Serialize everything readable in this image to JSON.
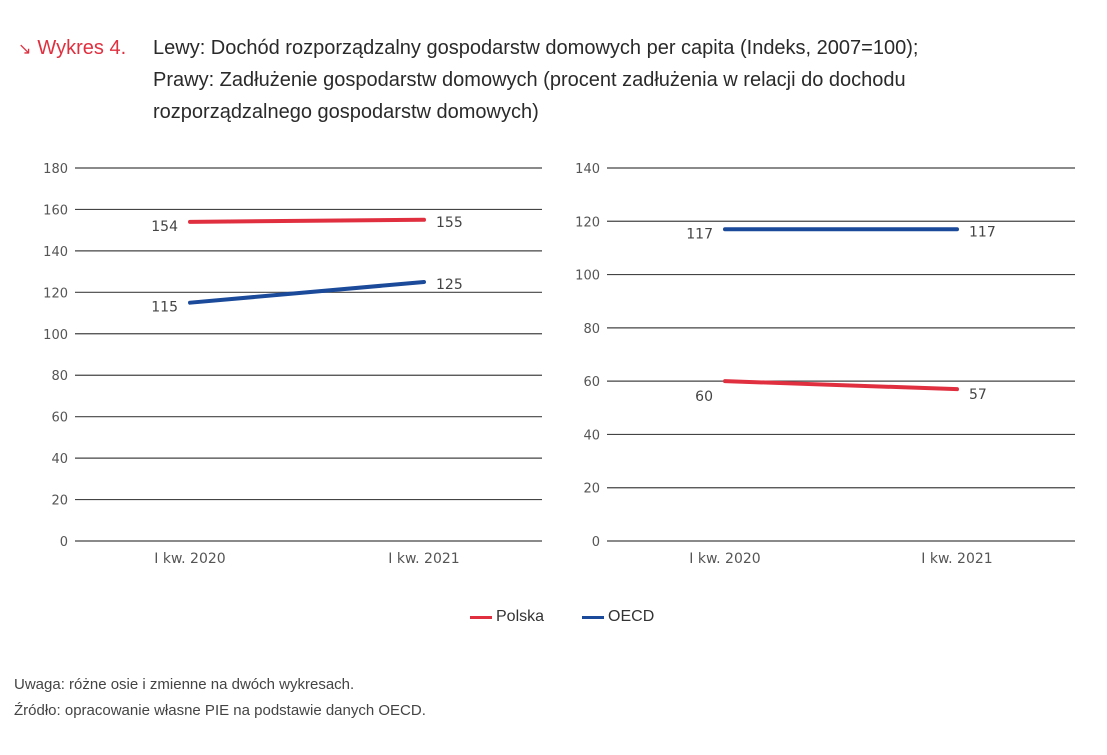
{
  "figure": {
    "label": "Wykres 4.",
    "label_icon": "arrow-down-right-icon",
    "title_lines": [
      "Lewy: Dochód rozporządzalny gospodarstw domowych per capita (Indeks, 2007=100);",
      "Prawy: Zadłużenie gospodarstw domowych (procent zadłużenia w relacji do dochodu",
      "rozporządzalnego gospodarstw domowych)"
    ],
    "accent_color": "#e03040"
  },
  "legend": [
    {
      "name": "Polska",
      "color": "#e03040"
    },
    {
      "name": "OECD",
      "color": "#1b4a9a"
    }
  ],
  "notes": {
    "note": "Uwaga: różne osie i zmienne na dwóch wykresach.",
    "source": "Źródło: opracowanie własne PIE na podstawie danych OECD."
  },
  "chart_data": [
    {
      "type": "line",
      "title": "Dochód rozporządzalny gospodarstw domowych per capita (Indeks, 2007=100)",
      "xlabel": "",
      "ylabel": "",
      "categories": [
        "I kw. 2020",
        "I kw. 2021"
      ],
      "ylim": [
        0,
        180
      ],
      "yticks": [
        0,
        20,
        40,
        60,
        80,
        100,
        120,
        140,
        160,
        180
      ],
      "grid": true,
      "series": [
        {
          "name": "Polska",
          "color": "#e03040",
          "values": [
            154,
            155
          ]
        },
        {
          "name": "OECD",
          "color": "#1b4a9a",
          "values": [
            115,
            125
          ]
        }
      ]
    },
    {
      "type": "line",
      "title": "Zadłużenie gospodarstw domowych (procent zadłużenia w relacji do dochodu rozporządzalnego)",
      "xlabel": "",
      "ylabel": "",
      "categories": [
        "I kw. 2020",
        "I kw. 2021"
      ],
      "ylim": [
        0,
        140
      ],
      "yticks": [
        0,
        20,
        40,
        60,
        80,
        100,
        120,
        140
      ],
      "grid": true,
      "series": [
        {
          "name": "OECD",
          "color": "#1b4a9a",
          "values": [
            117,
            117
          ]
        },
        {
          "name": "Polska",
          "color": "#e03040",
          "values": [
            60,
            57
          ]
        }
      ]
    }
  ]
}
